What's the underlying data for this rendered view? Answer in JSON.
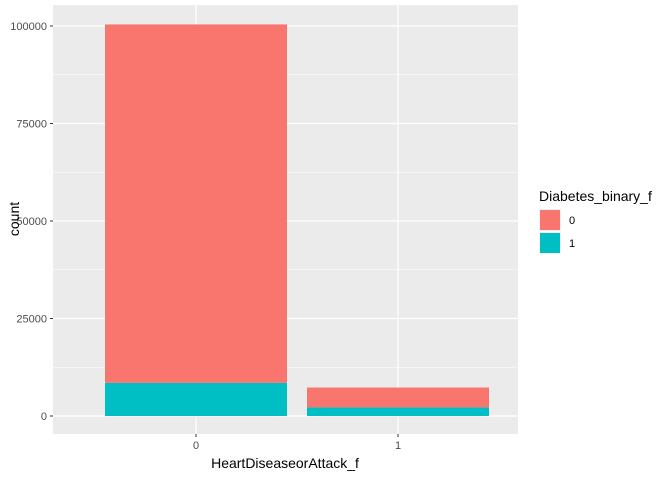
{
  "chart_data": {
    "type": "bar",
    "stacked": true,
    "xlabel": "HeartDiseaseorAttack_f",
    "ylabel": "count",
    "categories": [
      "0",
      "1"
    ],
    "ylim": [
      0,
      100000
    ],
    "yticks": [
      0,
      25000,
      50000,
      75000,
      100000
    ],
    "legend": {
      "title": "Diabetes_binary_f",
      "placement": "right"
    },
    "series": [
      {
        "name": "0",
        "color": "#F8766D",
        "values": [
          91900,
          5100
        ]
      },
      {
        "name": "1",
        "color": "#00BFC4",
        "values": [
          8500,
          2200
        ]
      }
    ],
    "grid": true,
    "panel_background": "#EBEBEB"
  }
}
